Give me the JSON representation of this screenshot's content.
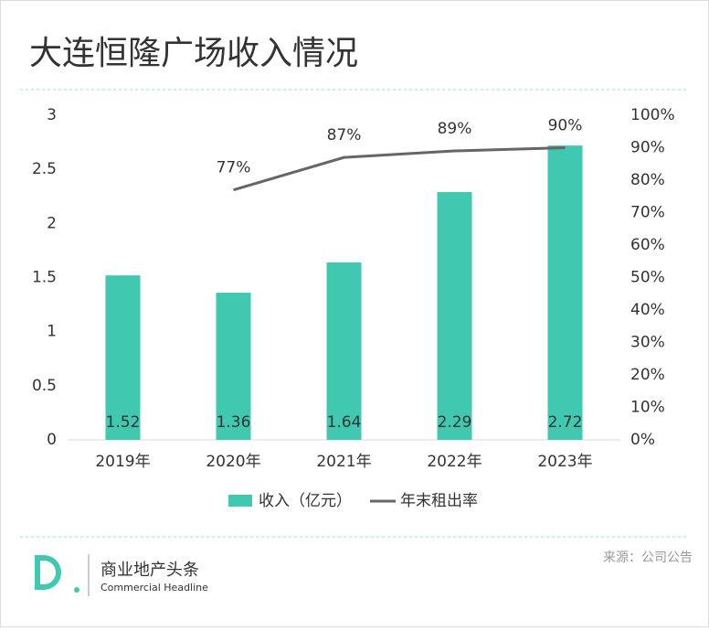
{
  "header": {
    "title": "大连恒隆广场收入情况"
  },
  "chart_data": {
    "type": "bar",
    "categories": [
      "2019年",
      "2020年",
      "2021年",
      "2022年",
      "2023年"
    ],
    "series": [
      {
        "name": "收入（亿元）",
        "type": "bar",
        "color": "#40c9b0",
        "values": [
          1.52,
          1.36,
          1.64,
          2.29,
          2.72
        ]
      },
      {
        "name": "年末租出率",
        "type": "line",
        "axis": "y2",
        "color": "#666666",
        "values": [
          null,
          77,
          87,
          89,
          90
        ],
        "value_labels": [
          null,
          "77%",
          "87%",
          "89%",
          "90%"
        ]
      }
    ],
    "ylim": [
      0,
      3
    ],
    "yticks": [
      0,
      0.5,
      1,
      1.5,
      2,
      2.5,
      3
    ],
    "y2lim": [
      0,
      100
    ],
    "y2ticks": [
      {
        "value": 0,
        "label": "0%"
      },
      {
        "value": 10,
        "label": "10%"
      },
      {
        "value": 20,
        "label": "20%"
      },
      {
        "value": 30,
        "label": "30%"
      },
      {
        "value": 40,
        "label": "40%"
      },
      {
        "value": 50,
        "label": "50%"
      },
      {
        "value": 60,
        "label": "60%"
      },
      {
        "value": 70,
        "label": "70%"
      },
      {
        "value": 80,
        "label": "80%"
      },
      {
        "value": 90,
        "label": "90%"
      },
      {
        "value": 100,
        "label": "100%"
      }
    ],
    "grid": false,
    "legend": "bottom"
  },
  "footer": {
    "brand": "商业地产头条",
    "brand_en": "Commercial Headline",
    "source": "来源：公司公告"
  }
}
